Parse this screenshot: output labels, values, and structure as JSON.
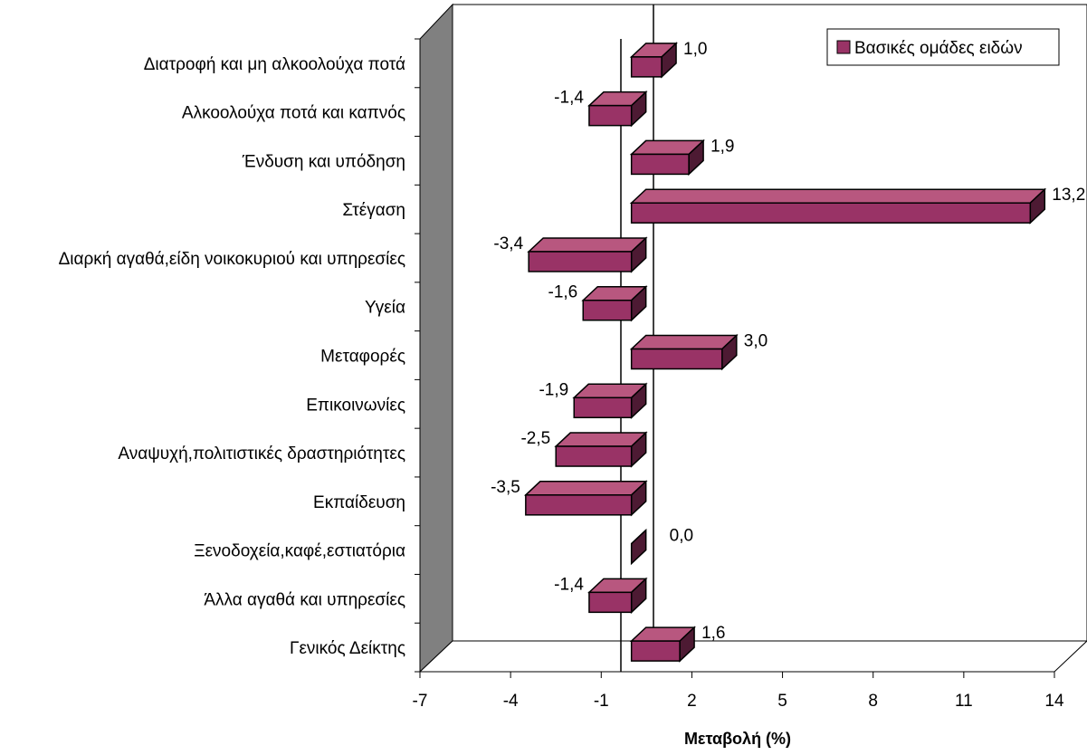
{
  "chart_data": {
    "type": "bar",
    "orientation": "horizontal",
    "three_d": true,
    "categories": [
      "Διατροφή και μη αλκοολούχα ποτά",
      "Αλκοολούχα ποτά και καπνός",
      "Ένδυση και υπόδηση",
      "Στέγαση",
      "Διαρκή αγαθά,είδη νοικοκυριού και υπηρεσίες",
      "Υγεία",
      "Μεταφορές",
      "Επικοινωνίες",
      "Αναψυχή,πολιτιστικές δραστηριότητες",
      "Εκπαίδευση",
      "Ξενοδοχεία,καφέ,εστιατόρια",
      "Άλλα αγαθά και υπηρεσίες",
      "Γενικός Δείκτης"
    ],
    "series": [
      {
        "name": "Βασικές ομάδες ειδών",
        "values": [
          1.0,
          -1.4,
          1.9,
          13.2,
          -3.4,
          -1.6,
          3.0,
          -1.9,
          -2.5,
          -3.5,
          0.0,
          -1.4,
          1.6
        ],
        "labels": [
          "1,0",
          "-1,4",
          "1,9",
          "13,2",
          "-3,4",
          "-1,6",
          "3,0",
          "-1,9",
          "-2,5",
          "-3,5",
          "0,0",
          "-1,4",
          "1,6"
        ]
      }
    ],
    "xlabel": "Μεταβολή (%)",
    "ylabel": "",
    "xlim": [
      -7,
      14
    ],
    "xticks": [
      "-7",
      "-4",
      "-1",
      "2",
      "5",
      "8",
      "11",
      "14"
    ],
    "legend_position": "top-right",
    "grid": false,
    "colors": {
      "bar_front": "#993366",
      "bar_top": "#b8577f",
      "bar_side": "#4d1a33",
      "wall": "#808080"
    }
  }
}
